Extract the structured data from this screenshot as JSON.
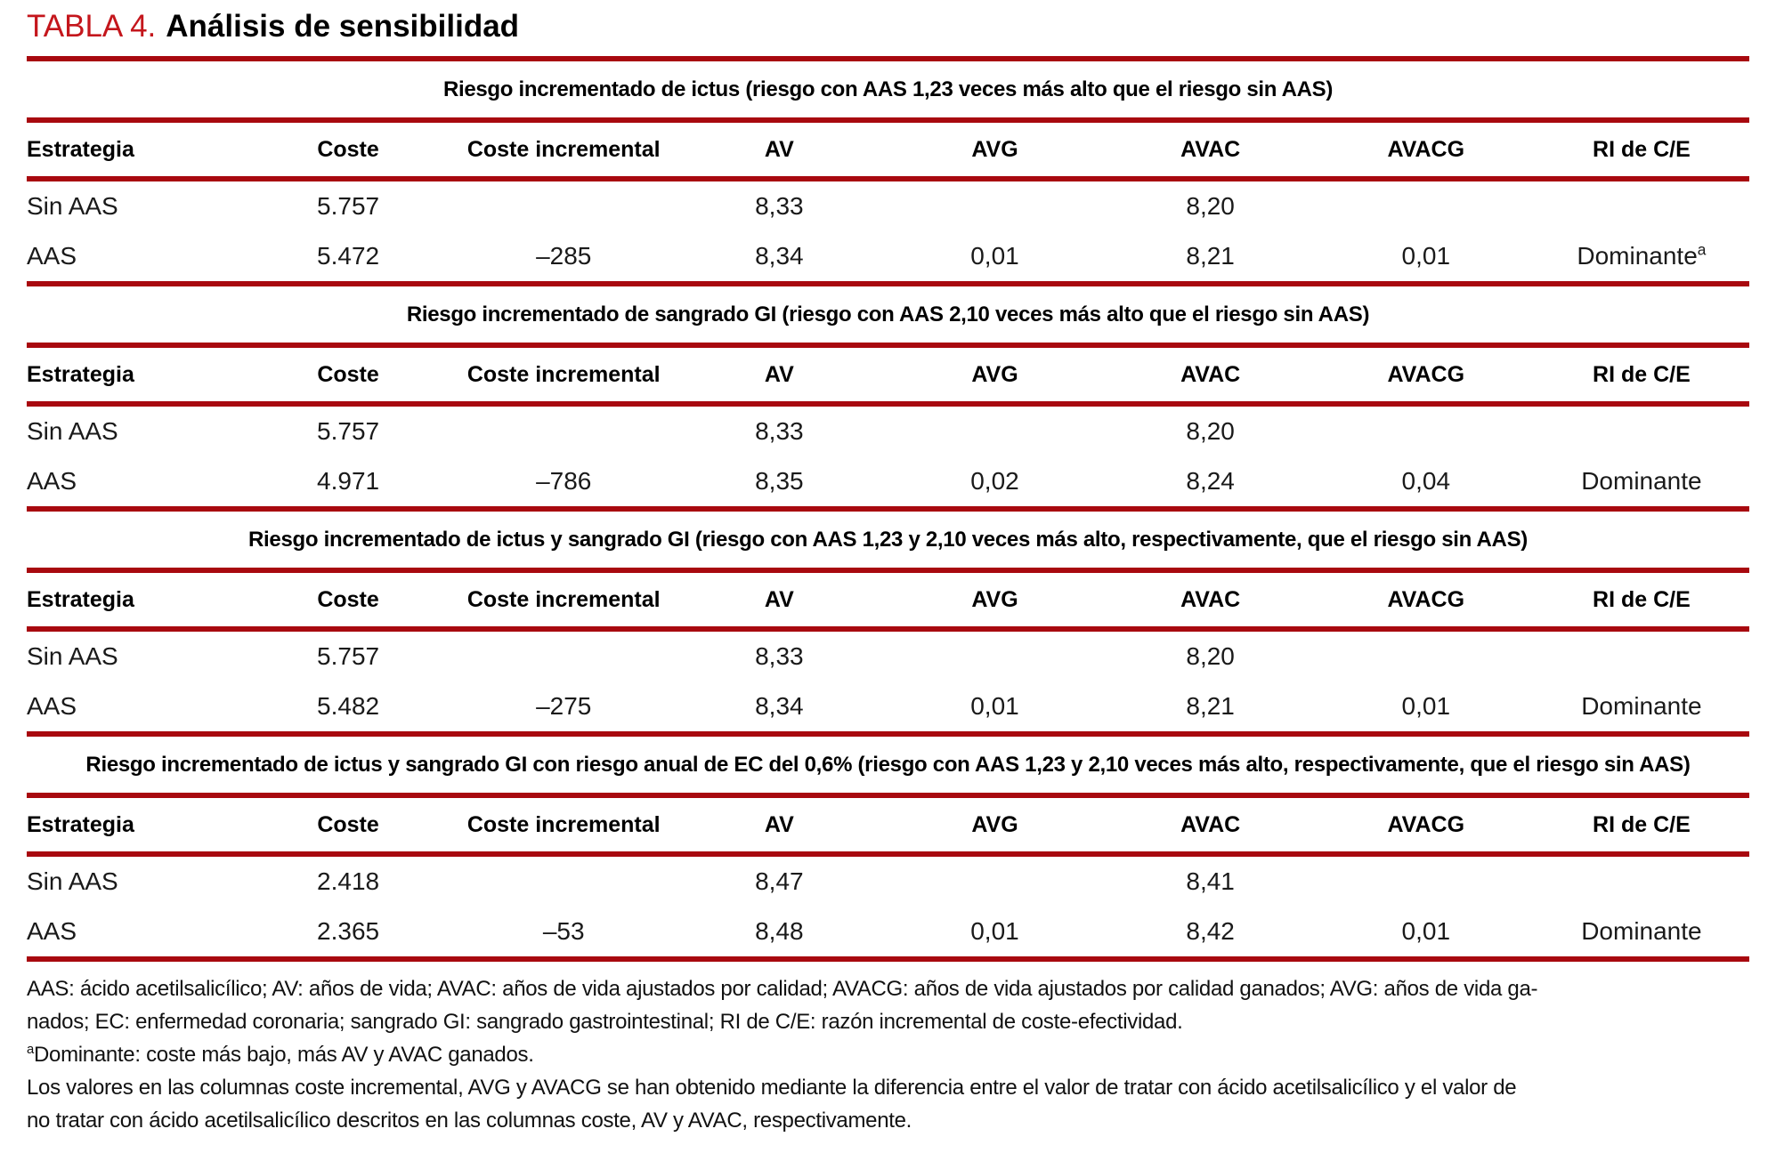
{
  "title": {
    "label": "TABLA 4.",
    "text": "Análisis de sensibilidad"
  },
  "colors": {
    "rule_red": "#A8090F",
    "title_red": "#C4161C"
  },
  "columns": [
    "Estrategia",
    "Coste",
    "Coste incremental",
    "AV",
    "AVG",
    "AVAC",
    "AVACG",
    "RI de C/E"
  ],
  "sections": [
    {
      "subtitle": "Riesgo incrementado de ictus (riesgo con AAS 1,23 veces más alto que el riesgo sin AAS)",
      "rows": [
        {
          "cells": [
            "Sin AAS",
            "5.757",
            "",
            "8,33",
            "",
            "8,20",
            "",
            ""
          ]
        },
        {
          "cells": [
            "AAS",
            "5.472",
            "–285",
            "8,34",
            "0,01",
            "8,21",
            "0,01",
            "Dominante"
          ],
          "sup": "a"
        }
      ]
    },
    {
      "subtitle": "Riesgo incrementado de sangrado GI (riesgo con AAS 2,10 veces más alto que el riesgo sin AAS)",
      "rows": [
        {
          "cells": [
            "Sin AAS",
            "5.757",
            "",
            "8,33",
            "",
            "8,20",
            "",
            ""
          ]
        },
        {
          "cells": [
            "AAS",
            "4.971",
            "–786",
            "8,35",
            "0,02",
            "8,24",
            "0,04",
            "Dominante"
          ]
        }
      ]
    },
    {
      "subtitle": "Riesgo incrementado de ictus y sangrado GI (riesgo con AAS 1,23 y 2,10 veces más alto, respectivamente, que el riesgo sin AAS)",
      "rows": [
        {
          "cells": [
            "Sin AAS",
            "5.757",
            "",
            "8,33",
            "",
            "8,20",
            "",
            ""
          ]
        },
        {
          "cells": [
            "AAS",
            "5.482",
            "–275",
            "8,34",
            "0,01",
            "8,21",
            "0,01",
            "Dominante"
          ]
        }
      ]
    },
    {
      "subtitle": "Riesgo incrementado de ictus y sangrado GI con riesgo anual de EC del 0,6% (riesgo con AAS 1,23 y 2,10 veces más alto, respectivamente, que el riesgo sin AAS)",
      "rows": [
        {
          "cells": [
            "Sin AAS",
            "2.418",
            "",
            "8,47",
            "",
            "8,41",
            "",
            ""
          ]
        },
        {
          "cells": [
            "AAS",
            "2.365",
            "–53",
            "8,48",
            "0,01",
            "8,42",
            "0,01",
            "Dominante"
          ]
        }
      ]
    }
  ],
  "footnotes": {
    "abbr_line1": "AAS: ácido acetilsalicílico; AV: años de vida; AVAC: años de vida ajustados por calidad; AVACG: años de vida ajustados por calidad ganados; AVG: años de vida ga-",
    "abbr_line2": "nados; EC: enfermedad coronaria; sangrado GI: sangrado gastrointestinal; RI de C/E: razón incremental de coste-efectividad.",
    "dominante_sup": "a",
    "dominante_text": "Dominante: coste más bajo, más AV y AVAC ganados.",
    "values_line1": "Los valores en las columnas coste incremental, AVG y AVACG se han obtenido mediante la diferencia entre el valor de tratar con ácido acetilsalicílico y el valor de",
    "values_line2": "no tratar con ácido acetilsalicílico descritos en las columnas coste, AV y AVAC, respectivamente."
  }
}
